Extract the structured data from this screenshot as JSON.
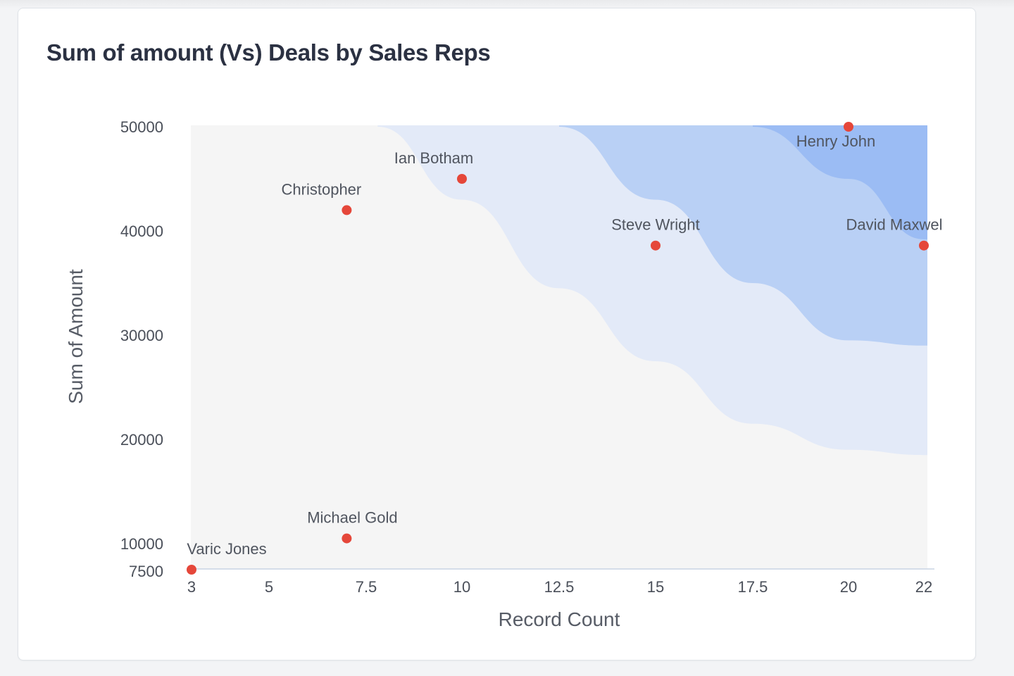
{
  "card": {
    "title": "Sum of amount (Vs) Deals by Sales Reps"
  },
  "colors": {
    "plot_background": "#f5f5f5",
    "band_light": "#e3eaf8",
    "band_medium": "#b9d0f5",
    "band_dark": "#9bbcf4",
    "point": "#e5473a",
    "axis_line": "#c9d3e3"
  },
  "chart_data": {
    "type": "scatter",
    "title": "Sum of amount (Vs) Deals by Sales Reps",
    "xlabel": "Record Count",
    "ylabel": "Sum of Amount",
    "xlim": [
      3,
      22
    ],
    "ylim": [
      7500,
      50000
    ],
    "x_ticks": [
      3,
      5,
      7.5,
      10,
      12.5,
      15,
      17.5,
      20,
      22
    ],
    "y_ticks": [
      7500,
      10000,
      20000,
      30000,
      40000,
      50000
    ],
    "grid": false,
    "points": [
      {
        "label": "Varic Jones",
        "x": 3,
        "y": 7500
      },
      {
        "label": "Michael Gold",
        "x": 7,
        "y": 10500
      },
      {
        "label": "Christopher",
        "x": 7,
        "y": 42000
      },
      {
        "label": "Ian Botham",
        "x": 10,
        "y": 45000
      },
      {
        "label": "Steve Wright",
        "x": 15,
        "y": 38600
      },
      {
        "label": "Henry John",
        "x": 20,
        "y": 50000
      },
      {
        "label": "David Maxwel",
        "x": 22,
        "y": 38600
      }
    ],
    "background_bands": [
      {
        "level": "light",
        "boundary": [
          [
            7.8,
            50000
          ],
          [
            10,
            43000
          ],
          [
            12.5,
            34500
          ],
          [
            15,
            27500
          ],
          [
            17.5,
            21500
          ],
          [
            20,
            19000
          ],
          [
            22,
            18500
          ]
        ]
      },
      {
        "level": "medium",
        "boundary": [
          [
            12.5,
            50000
          ],
          [
            15,
            43000
          ],
          [
            17.5,
            35000
          ],
          [
            20,
            29500
          ],
          [
            22,
            29000
          ]
        ]
      },
      {
        "level": "dark",
        "boundary": [
          [
            17.5,
            50000
          ],
          [
            20,
            45000
          ],
          [
            22,
            39200
          ]
        ]
      }
    ]
  }
}
